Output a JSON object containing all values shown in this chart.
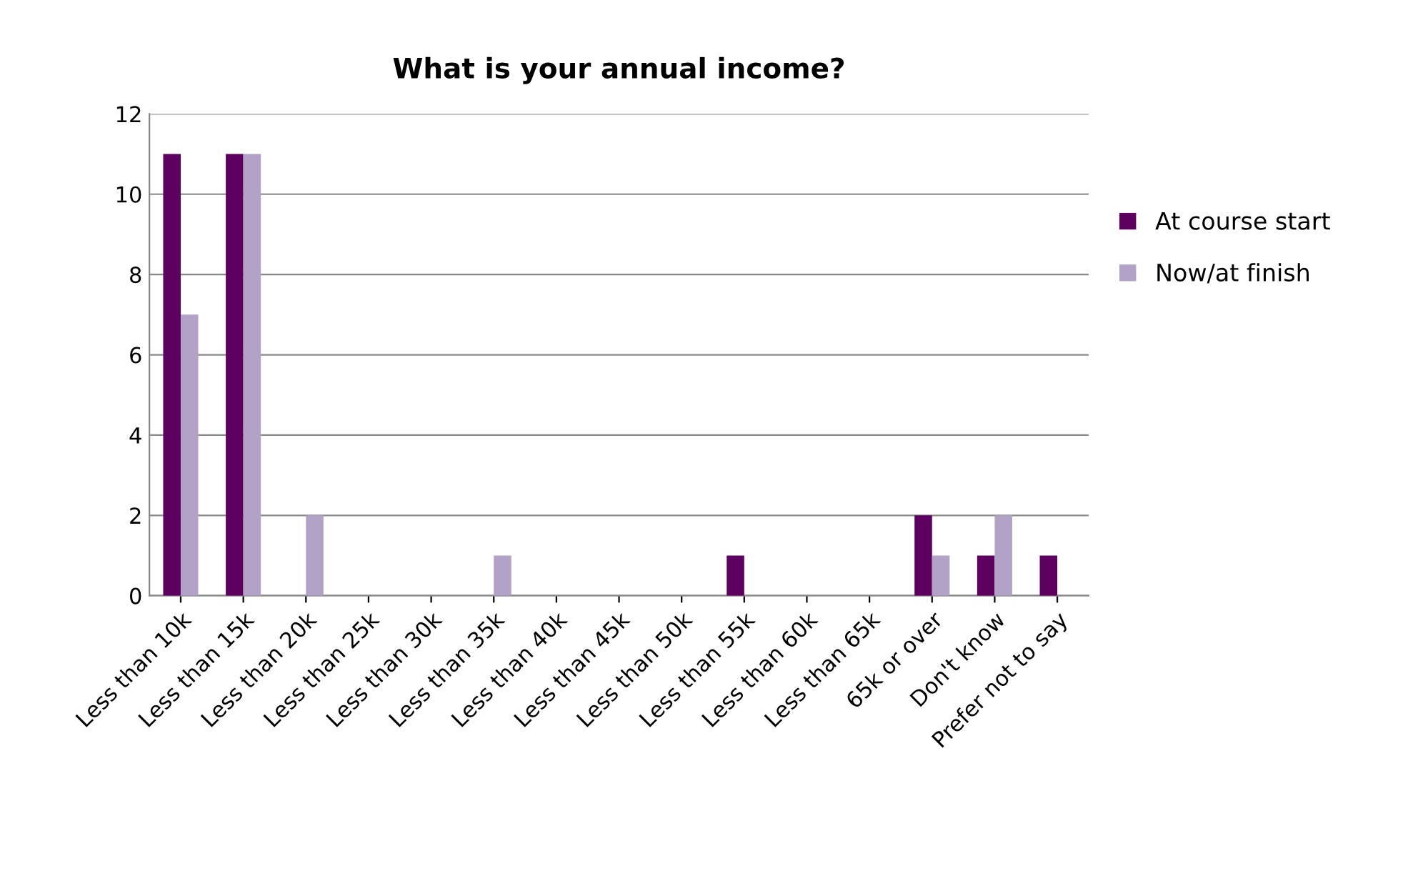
{
  "chart_data": {
    "type": "bar",
    "title": "What is your annual income?",
    "categories": [
      "Less than 10k",
      "Less than 15k",
      "Less than 20k",
      "Less than 25k",
      "Less than 30k",
      "Less than 35k",
      "Less than 40k",
      "Less than 45k",
      "Less than 50k",
      "Less than 55k",
      "Less than 60k",
      "Less than 65k",
      "65k or over",
      "Don't know",
      "Prefer not to say"
    ],
    "series": [
      {
        "name": "At course start",
        "color": "#5e0060",
        "values": [
          11,
          11,
          0,
          0,
          0,
          0,
          0,
          0,
          0,
          1,
          0,
          0,
          2,
          1,
          1
        ]
      },
      {
        "name": "Now/at finish",
        "color": "#b3a2c8",
        "values": [
          7,
          11,
          2,
          0,
          0,
          1,
          0,
          0,
          0,
          0,
          0,
          0,
          1,
          2,
          0
        ]
      }
    ],
    "ylim": [
      0,
      12
    ],
    "yticks": [
      0,
      2,
      4,
      6,
      8,
      10,
      12
    ],
    "grid": "y",
    "legend": "right"
  }
}
